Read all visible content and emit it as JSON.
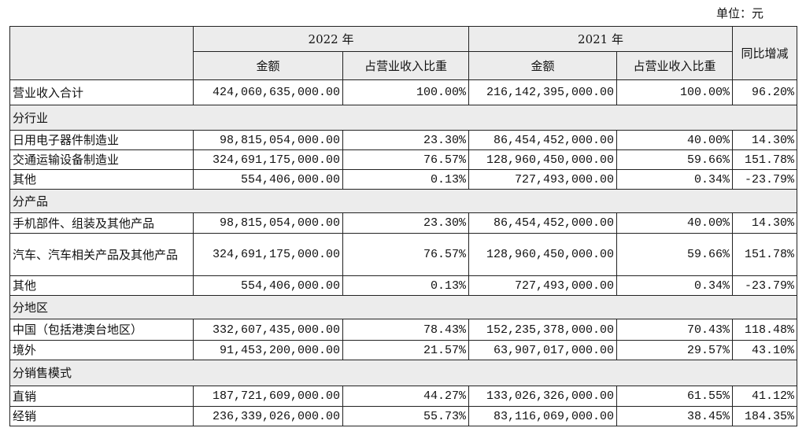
{
  "unit": "单位：元",
  "header": {
    "year_a": "2022 年",
    "year_b": "2021 年",
    "amount_a": "金额",
    "share_a": "占营业收入比重",
    "amount_b": "金额",
    "share_b": "占营业收入比重",
    "yoy": "同比增减"
  },
  "table": {
    "rows": [
      [
        "营业收入合计",
        "424,060,635,000.00",
        "100.00%",
        "216,142,395,000.00",
        "100.00%",
        "96.20%"
      ],
      [
        "分行业"
      ],
      [
        "日用电子器件制造业",
        "98,815,054,000.00",
        "23.30%",
        "86,454,452,000.00",
        "40.00%",
        "14.30%"
      ],
      [
        "交通运输设备制造业",
        "324,691,175,000.00",
        "76.57%",
        "128,960,450,000.00",
        "59.66%",
        "151.78%"
      ],
      [
        "其他",
        "554,406,000.00",
        "0.13%",
        "727,493,000.00",
        "0.34%",
        "-23.79%"
      ],
      [
        "分产品"
      ],
      [
        "手机部件、组装及其他产品",
        "98,815,054,000.00",
        "23.30%",
        "86,454,452,000.00",
        "40.00%",
        "14.30%"
      ],
      [
        "汽车、汽车相关产品及其他产品",
        "324,691,175,000.00",
        "76.57%",
        "128,960,450,000.00",
        "59.66%",
        "151.78%"
      ],
      [
        "其他",
        "554,406,000.00",
        "0.13%",
        "727,493,000.00",
        "0.34%",
        "-23.79%"
      ],
      [
        "分地区"
      ],
      [
        "中国（包括港澳台地区）",
        "332,607,435,000.00",
        "78.43%",
        "152,235,378,000.00",
        "70.43%",
        "118.48%"
      ],
      [
        "境外",
        "91,453,200,000.00",
        "21.57%",
        "63,907,017,000.00",
        "29.57%",
        "43.10%"
      ],
      [
        "分销售模式"
      ],
      [
        "直销",
        "187,721,609,000.00",
        "44.27%",
        "133,026,326,000.00",
        "61.55%",
        "41.12%"
      ],
      [
        "经销",
        "236,339,026,000.00",
        "55.73%",
        "83,116,069,000.00",
        "38.45%",
        "184.35%"
      ]
    ]
  }
}
